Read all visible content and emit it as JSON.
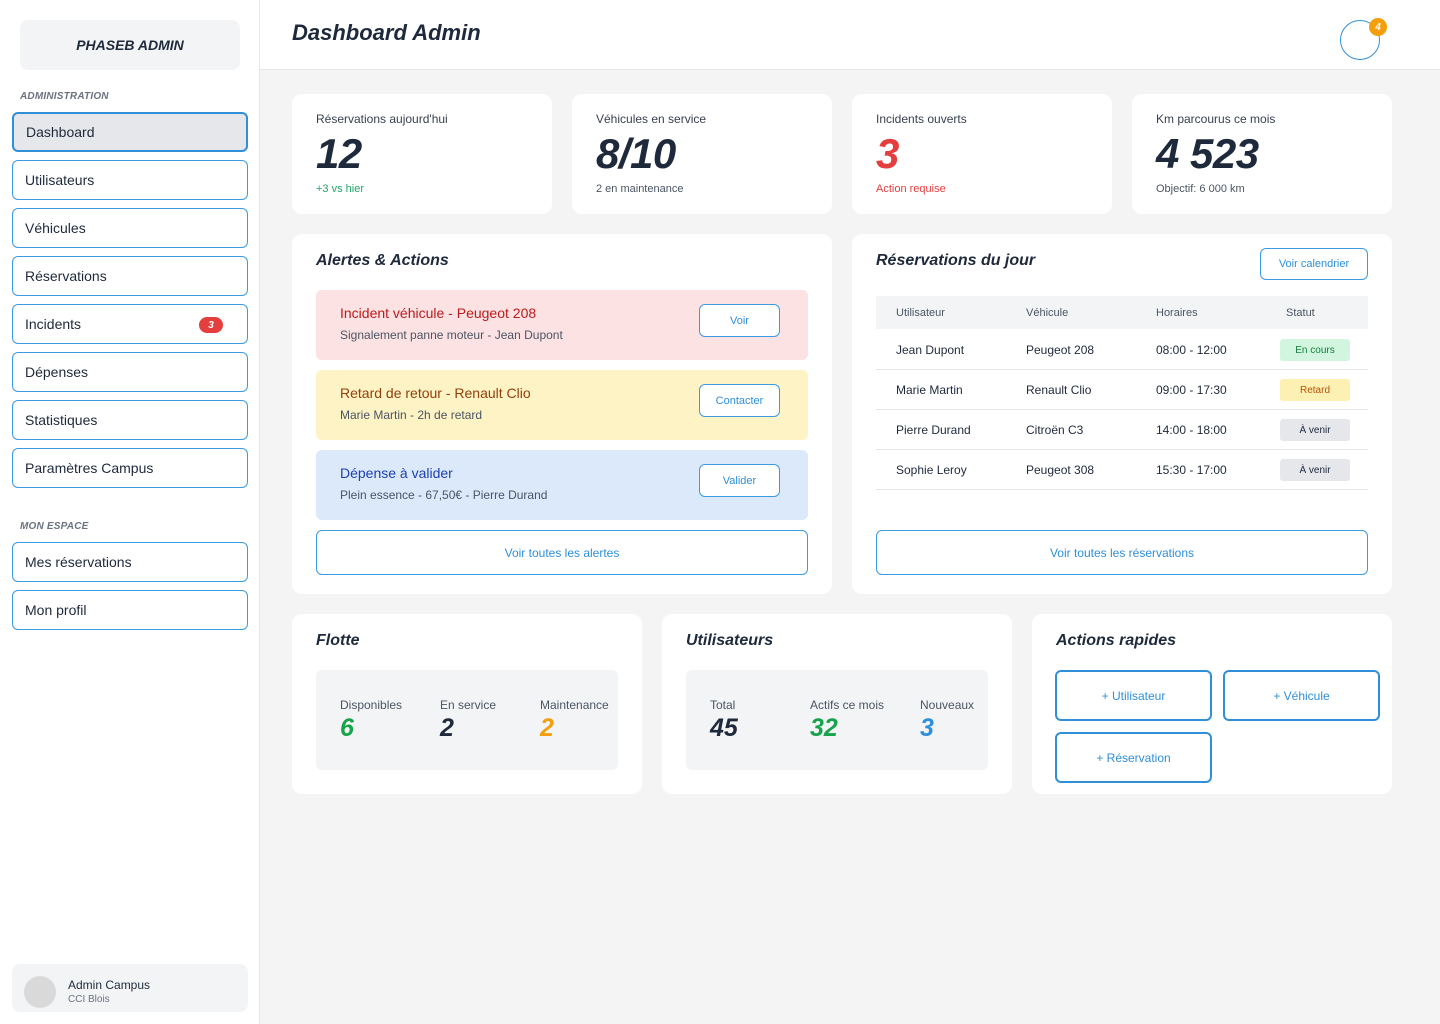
{
  "sidebar": {
    "brand": "PHASEB ADMIN",
    "section_admin": "ADMINISTRATION",
    "section_mine": "MON ESPACE",
    "items": [
      {
        "label": "Dashboard"
      },
      {
        "label": "Utilisateurs"
      },
      {
        "label": "Véhicules"
      },
      {
        "label": "Réservations"
      },
      {
        "label": "Incidents",
        "badge": "3"
      },
      {
        "label": "Dépenses"
      },
      {
        "label": "Statistiques"
      },
      {
        "label": "Paramètres Campus"
      }
    ],
    "personal_items": [
      {
        "label": "Mes réservations"
      },
      {
        "label": "Mon profil"
      }
    ],
    "user": {
      "name": "Admin Campus",
      "subtitle": "CCI Blois"
    }
  },
  "header": {
    "title": "Dashboard Admin",
    "notification_count": "4"
  },
  "stats": [
    {
      "label": "Réservations aujourd'hui",
      "value": "12",
      "sub": "+3 vs hier",
      "value_color": "#1e293b",
      "sub_color": "#22a866"
    },
    {
      "label": "Véhicules en service",
      "value": "8/10",
      "sub": "2 en maintenance",
      "value_color": "#1e293b",
      "sub_color": "#4b5563"
    },
    {
      "label": "Incidents ouverts",
      "value": "3",
      "sub": "Action requise",
      "value_color": "#e53e3e",
      "sub_color": "#e53e3e"
    },
    {
      "label": "Km parcourus ce mois",
      "value": "4 523",
      "sub": "Objectif: 6 000 km",
      "value_color": "#1e293b",
      "sub_color": "#4b5563"
    }
  ],
  "alerts": {
    "title": "Alertes & Actions",
    "items": [
      {
        "title": "Incident véhicule - Peugeot 208",
        "desc": "Signalement panne moteur - Jean Dupont",
        "button": "Voir",
        "bg": "#fde2e4",
        "color": "#b91c1c"
      },
      {
        "title": "Retard de retour - Renault Clio",
        "desc": "Marie Martin - 2h de retard",
        "button": "Contacter",
        "bg": "#fdf3c4",
        "color": "#92400e"
      },
      {
        "title": "Dépense à valider",
        "desc": "Plein essence - 67,50€ - Pierre Durand",
        "button": "Valider",
        "bg": "#dbe9fb",
        "color": "#1e40af"
      }
    ],
    "all_button": "Voir toutes les alertes"
  },
  "reservations": {
    "title": "Réservations du jour",
    "calendar_button": "Voir calendrier",
    "columns": [
      "Utilisateur",
      "Véhicule",
      "Horaires",
      "Statut"
    ],
    "rows": [
      {
        "user": "Jean Dupont",
        "vehicle": "Peugeot 208",
        "hours": "08:00 - 12:00",
        "status": "En cours",
        "status_bg": "#d1f5df",
        "status_color": "#15803d"
      },
      {
        "user": "Marie Martin",
        "vehicle": "Renault Clio",
        "hours": "09:00 - 17:30",
        "status": "Retard",
        "status_bg": "#fdf0b3",
        "status_color": "#b45309"
      },
      {
        "user": "Pierre Durand",
        "vehicle": "Citroën C3",
        "hours": "14:00 - 18:00",
        "status": "À venir",
        "status_bg": "#e5e7eb",
        "status_color": "#1e293b"
      },
      {
        "user": "Sophie Leroy",
        "vehicle": "Peugeot 308",
        "hours": "15:30 - 17:00",
        "status": "À venir",
        "status_bg": "#e5e7eb",
        "status_color": "#1e293b"
      }
    ],
    "all_button": "Voir toutes les réservations"
  },
  "fleet": {
    "title": "Flotte",
    "stats": [
      {
        "label": "Disponibles",
        "value": "6",
        "color": "#16a34a"
      },
      {
        "label": "En service",
        "value": "2",
        "color": "#1e293b"
      },
      {
        "label": "Maintenance",
        "value": "2",
        "color": "#f59e0b"
      }
    ]
  },
  "users": {
    "title": "Utilisateurs",
    "stats": [
      {
        "label": "Total",
        "value": "45",
        "color": "#1e293b"
      },
      {
        "label": "Actifs ce mois",
        "value": "32",
        "color": "#16a34a"
      },
      {
        "label": "Nouveaux",
        "value": "3",
        "color": "#2f8fd8"
      }
    ]
  },
  "quick_actions": {
    "title": "Actions rapides",
    "buttons": [
      "+ Utilisateur",
      "+ Véhicule",
      "+ Réservation"
    ]
  }
}
